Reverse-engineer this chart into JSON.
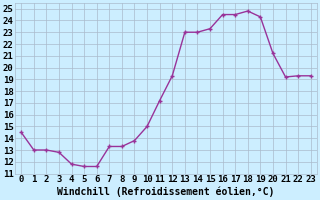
{
  "x": [
    0,
    1,
    2,
    3,
    4,
    5,
    6,
    7,
    8,
    9,
    10,
    11,
    12,
    13,
    14,
    15,
    16,
    17,
    18,
    19,
    20,
    21,
    22,
    23
  ],
  "y": [
    14.5,
    13.0,
    13.0,
    12.8,
    11.8,
    11.6,
    11.6,
    13.3,
    13.3,
    13.8,
    15.0,
    17.2,
    19.3,
    23.0,
    23.0,
    23.3,
    24.5,
    24.5,
    24.8,
    24.3,
    21.2,
    19.2,
    19.3,
    19.3
  ],
  "line_color": "#993399",
  "marker": "+",
  "marker_size": 3,
  "marker_lw": 1.0,
  "line_width": 1.0,
  "bg_color": "#cceeff",
  "grid_color": "#aabbcc",
  "xlabel": "Windchill (Refroidissement éolien,°C)",
  "xlabel_fontsize": 7,
  "tick_fontsize": 6.5,
  "ylim": [
    11,
    25.5
  ],
  "xlim": [
    -0.5,
    23.5
  ],
  "yticks": [
    11,
    12,
    13,
    14,
    15,
    16,
    17,
    18,
    19,
    20,
    21,
    22,
    23,
    24,
    25
  ],
  "xticks": [
    0,
    1,
    2,
    3,
    4,
    5,
    6,
    7,
    8,
    9,
    10,
    11,
    12,
    13,
    14,
    15,
    16,
    17,
    18,
    19,
    20,
    21,
    22,
    23
  ]
}
